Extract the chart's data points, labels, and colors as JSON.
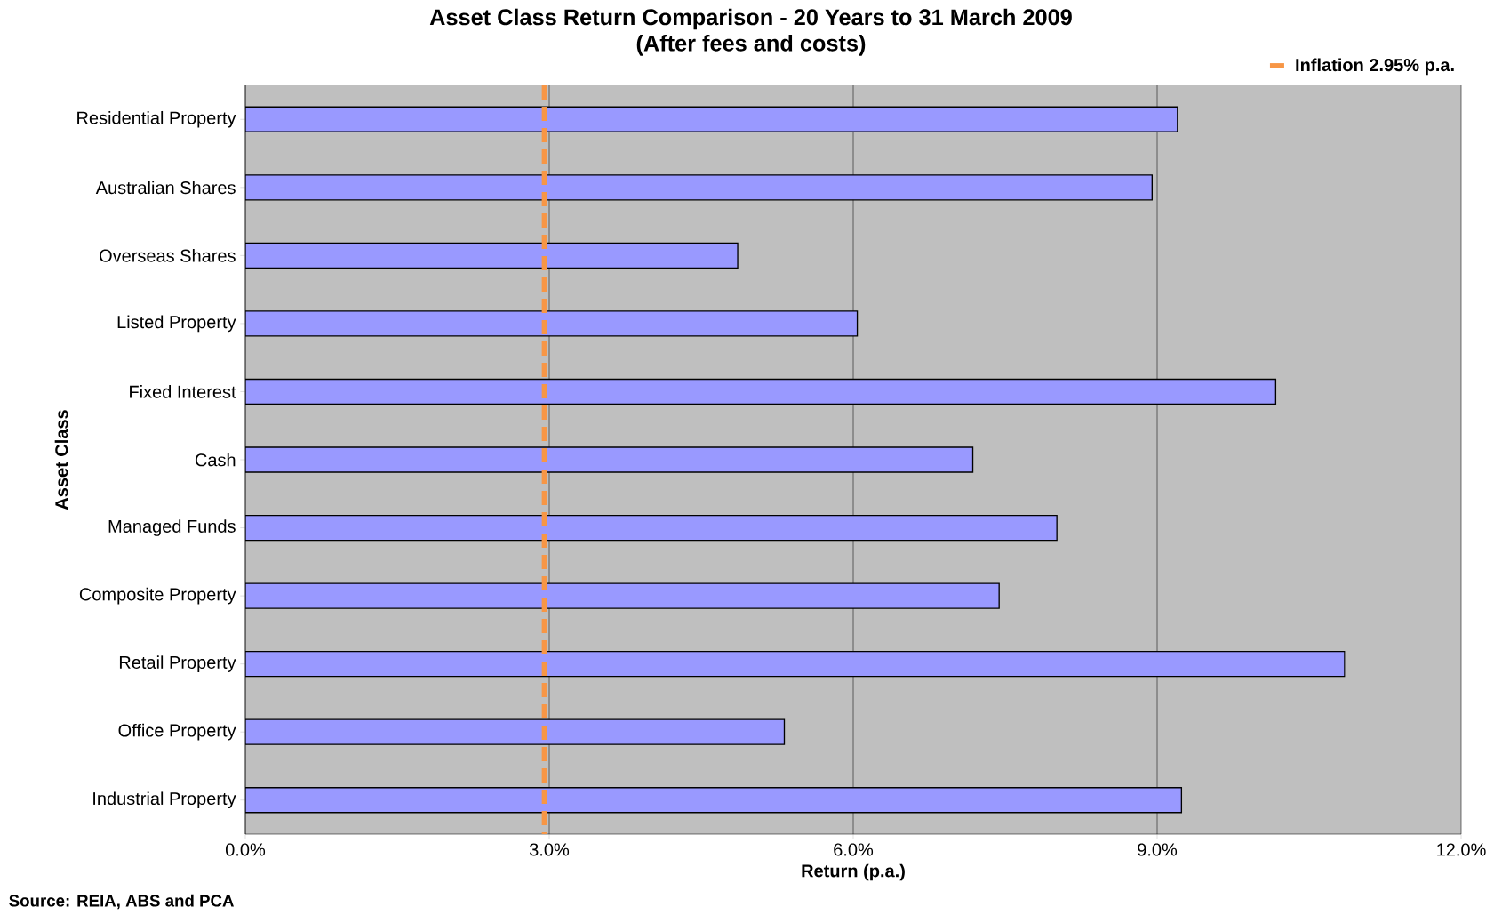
{
  "chart_data": {
    "type": "bar",
    "orientation": "horizontal",
    "title": "Asset Class Return Comparison - 20 Years to 31 March 2009",
    "subtitle": "(After fees and costs)",
    "xlabel": "Return (p.a.)",
    "ylabel": "Asset Class",
    "categories": [
      "Residential Property",
      "Australian Shares",
      "Overseas Shares",
      "Listed Property",
      "Fixed Interest",
      "Cash",
      "Managed Funds",
      "Composite Property",
      "Retail Property",
      "Office Property",
      "Industrial Property"
    ],
    "values": [
      9.2,
      8.95,
      4.86,
      6.04,
      10.17,
      7.18,
      8.01,
      7.44,
      10.85,
      5.32,
      9.24
    ],
    "color": "#9999ff",
    "xlim": [
      0,
      12
    ],
    "xticks": [
      {
        "value": 0,
        "label": "0.0%"
      },
      {
        "value": 3,
        "label": "3.0%"
      },
      {
        "value": 6,
        "label": "6.0%"
      },
      {
        "value": 9,
        "label": "9.0%"
      },
      {
        "value": 12,
        "label": "12.0%"
      }
    ],
    "grid": "x",
    "legend": "top right",
    "ref_lines": [
      {
        "axis": "x",
        "value": 2.95,
        "label": "Inflation 2.95% p.a.",
        "color": "#f79646",
        "line_style": "dashed"
      }
    ],
    "annotations": [
      "Source: REIA, ABS and PCA"
    ]
  }
}
